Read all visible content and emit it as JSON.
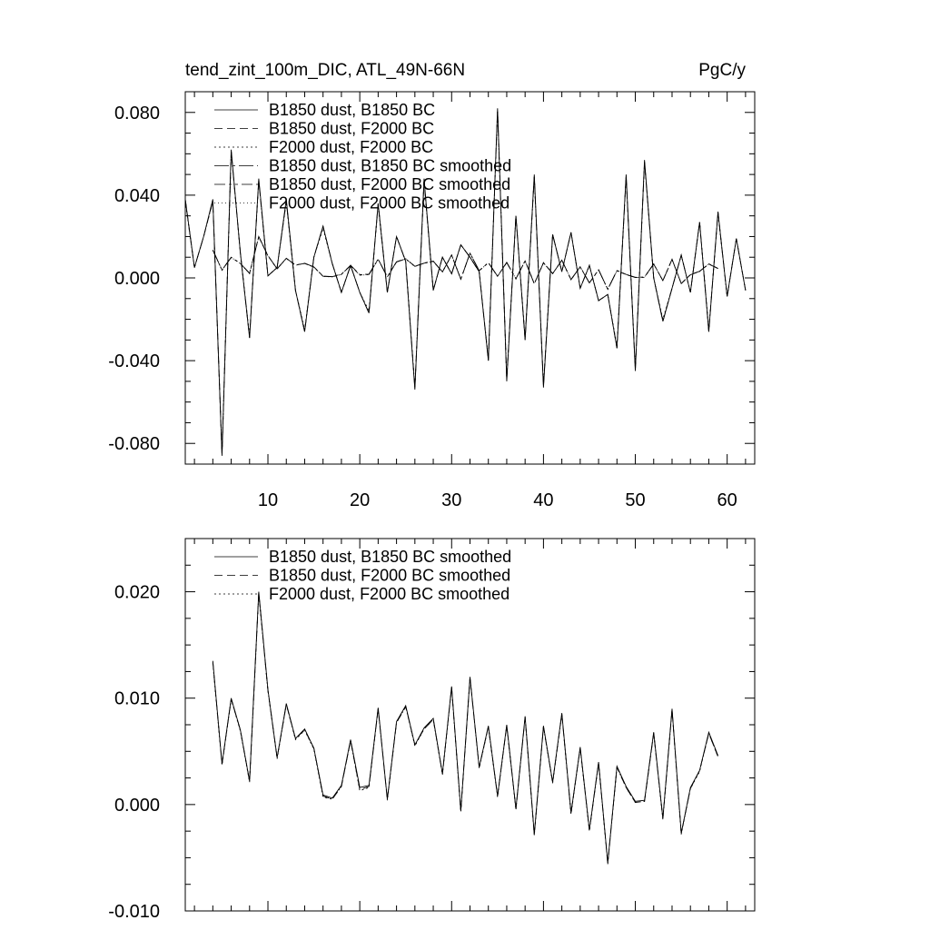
{
  "chart_data": [
    {
      "type": "line",
      "title_left": "tend_zint_100m_DIC, ATL_49N-66N",
      "title_right": "PgC/y",
      "xlabel": "",
      "ylabel": "",
      "xlim": [
        1,
        63
      ],
      "ylim": [
        -0.09,
        0.09
      ],
      "x_ticks": [
        10,
        20,
        30,
        40,
        50,
        60
      ],
      "x_tick_labels": [
        "10",
        "20",
        "30",
        "40",
        "50",
        "60"
      ],
      "y_ticks": [
        -0.08,
        -0.04,
        0.0,
        0.04,
        0.08
      ],
      "y_tick_labels": [
        "-0.080",
        "-0.040",
        "0.000",
        "0.040",
        "0.080"
      ],
      "grid": false,
      "legend_position": "top-left",
      "legend": [
        "B1850 dust, B1850 BC",
        "B1850 dust, F2000 BC",
        "F2000 dust, F2000 BC",
        "B1850 dust, B1850 BC smoothed",
        "B1850 dust, F2000 BC smoothed",
        "F2000 dust, F2000 BC smoothed"
      ],
      "series": [
        {
          "name": "B1850 dust, B1850 BC",
          "dash": "",
          "x_start": 1,
          "values": [
            0.038,
            0.005,
            0.02,
            0.038,
            -0.086,
            0.062,
            0.012,
            -0.029,
            0.048,
            0.001,
            0.005,
            0.038,
            -0.006,
            -0.026,
            0.01,
            0.025,
            0.007,
            -0.007,
            0.006,
            -0.007,
            -0.017,
            0.036,
            -0.007,
            0.02,
            0.008,
            -0.054,
            0.048,
            -0.006,
            0.01,
            0.002,
            0.016,
            0.01,
            0.003,
            -0.04,
            0.082,
            -0.05,
            0.03,
            -0.03,
            0.05,
            -0.053,
            0.021,
            0.003,
            0.022,
            -0.005,
            0.006,
            -0.011,
            -0.008,
            -0.034,
            0.05,
            -0.045,
            0.057,
            0.0,
            -0.021,
            -0.005,
            0.011,
            -0.007,
            0.027,
            -0.026,
            0.032,
            -0.009,
            0.019,
            -0.006
          ]
        },
        {
          "name": "B1850 dust, F2000 BC",
          "dash": "9,5",
          "x_start": 1,
          "values": [
            0.038,
            0.005,
            0.02,
            0.037,
            -0.085,
            0.061,
            0.012,
            -0.029,
            0.047,
            0.001,
            0.005,
            0.037,
            -0.006,
            -0.026,
            0.01,
            0.025,
            0.007,
            -0.007,
            0.006,
            -0.007,
            -0.017,
            0.036,
            -0.007,
            0.02,
            0.008,
            -0.053,
            0.047,
            -0.006,
            0.01,
            0.002,
            0.016,
            0.01,
            0.003,
            -0.04,
            0.081,
            -0.049,
            0.03,
            -0.03,
            0.049,
            -0.052,
            0.021,
            0.003,
            0.022,
            -0.005,
            0.006,
            -0.011,
            -0.008,
            -0.034,
            0.049,
            -0.044,
            0.056,
            0.0,
            -0.021,
            -0.005,
            0.011,
            -0.007,
            0.027,
            -0.026,
            0.032,
            -0.009,
            0.019,
            -0.006
          ]
        },
        {
          "name": "F2000 dust, F2000 BC",
          "dash": "2,3",
          "x_start": 1,
          "values": [
            0.037,
            0.005,
            0.02,
            0.037,
            -0.085,
            0.061,
            0.012,
            -0.028,
            0.047,
            0.001,
            0.005,
            0.037,
            -0.006,
            -0.025,
            0.01,
            0.024,
            0.007,
            -0.007,
            0.006,
            -0.007,
            -0.016,
            0.035,
            -0.007,
            0.02,
            0.008,
            -0.053,
            0.047,
            -0.006,
            0.01,
            0.002,
            0.016,
            0.01,
            0.003,
            -0.039,
            0.081,
            -0.049,
            0.03,
            -0.029,
            0.049,
            -0.052,
            0.021,
            0.003,
            0.022,
            -0.005,
            0.006,
            -0.011,
            -0.008,
            -0.033,
            0.049,
            -0.044,
            0.056,
            0.0,
            -0.02,
            -0.005,
            0.011,
            -0.007,
            0.027,
            -0.025,
            0.031,
            -0.009,
            0.019,
            -0.006
          ]
        },
        {
          "name": "B1850 dust, B1850 BC smoothed",
          "dash": "16,4,3,4",
          "x_start": 4,
          "values": [
            0.0135,
            0.0038,
            0.01,
            0.007,
            0.0022,
            0.02,
            0.0108,
            0.0044,
            0.0095,
            0.0062,
            0.0071,
            0.0053,
            0.0009,
            0.0006,
            0.0018,
            0.0061,
            0.0016,
            0.0018,
            0.0091,
            0.0005,
            0.0078,
            0.0093,
            0.0056,
            0.0072,
            0.0081,
            0.0029,
            0.0111,
            -0.0006,
            0.012,
            0.0035,
            0.0074,
            0.0008,
            0.0075,
            -0.0004,
            0.0083,
            -0.0028,
            0.0074,
            0.0021,
            0.0086,
            -0.0008,
            0.0054,
            -0.0024,
            0.004,
            -0.0055,
            0.0036,
            0.0017,
            0.0003,
            0.0004,
            0.0068,
            -0.0013,
            0.009,
            -0.0027,
            0.0016,
            0.0032,
            0.0068,
            0.0046
          ]
        },
        {
          "name": "B1850 dust, F2000 BC smoothed",
          "dash": "12,4,3,4,3,4",
          "x_start": 4,
          "values": [
            0.0134,
            0.0038,
            0.0099,
            0.007,
            0.0022,
            0.0199,
            0.0107,
            0.0044,
            0.0094,
            0.0062,
            0.007,
            0.0053,
            0.0008,
            0.0005,
            0.0017,
            0.006,
            0.0014,
            0.0017,
            0.009,
            0.0005,
            0.0077,
            0.0092,
            0.0056,
            0.0071,
            0.008,
            0.0029,
            0.011,
            -0.0006,
            0.0119,
            0.0035,
            0.0073,
            0.0008,
            0.0074,
            -0.0004,
            0.0082,
            -0.0028,
            0.0073,
            0.0021,
            0.0085,
            -0.0008,
            0.0053,
            -0.0024,
            0.0039,
            -0.0055,
            0.0035,
            0.0016,
            0.0002,
            0.0003,
            0.0067,
            -0.0013,
            0.0089,
            -0.0027,
            0.0015,
            0.0032,
            0.0067,
            0.0045
          ]
        },
        {
          "name": "F2000 dust, F2000 BC smoothed",
          "dash": "1,3",
          "x_start": 4,
          "values": [
            0.0133,
            0.0037,
            0.0099,
            0.0069,
            0.0021,
            0.0198,
            0.0107,
            0.0043,
            0.0094,
            0.0061,
            0.007,
            0.0052,
            0.0007,
            0.0005,
            0.0017,
            0.006,
            0.0013,
            0.0016,
            0.009,
            0.0004,
            0.0077,
            0.0092,
            0.0055,
            0.0071,
            0.008,
            0.0028,
            0.011,
            -0.0007,
            0.0119,
            0.0034,
            0.0073,
            0.0007,
            0.0074,
            -0.0005,
            0.0082,
            -0.0029,
            0.0073,
            0.002,
            0.0085,
            -0.0009,
            0.0053,
            -0.0025,
            0.0039,
            -0.0056,
            0.0035,
            0.0016,
            0.0002,
            0.0003,
            0.0067,
            -0.0014,
            0.0089,
            -0.0028,
            0.0015,
            0.0031,
            0.0067,
            0.0045
          ]
        }
      ]
    },
    {
      "type": "line",
      "xlabel": "",
      "ylabel": "",
      "xlim": [
        1,
        63
      ],
      "ylim": [
        -0.01,
        0.025
      ],
      "x_ticks": [
        10,
        20,
        30,
        40,
        50,
        60
      ],
      "x_tick_labels": [],
      "y_ticks": [
        -0.01,
        0.0,
        0.01,
        0.02
      ],
      "y_tick_labels": [
        "-0.010",
        "0.000",
        "0.010",
        "0.020"
      ],
      "grid": false,
      "legend_position": "top-left",
      "legend": [
        "B1850 dust, B1850 BC smoothed",
        "B1850 dust, F2000 BC smoothed",
        "F2000 dust, F2000 BC smoothed"
      ],
      "series": [
        {
          "name": "B1850 dust, B1850 BC smoothed",
          "dash": "",
          "x_start": 4,
          "values": [
            0.0135,
            0.0038,
            0.01,
            0.007,
            0.0022,
            0.02,
            0.0108,
            0.0044,
            0.0095,
            0.0062,
            0.0071,
            0.0053,
            0.0009,
            0.0006,
            0.0018,
            0.0061,
            0.0016,
            0.0018,
            0.0091,
            0.0005,
            0.0078,
            0.0093,
            0.0056,
            0.0072,
            0.0081,
            0.0029,
            0.0111,
            -0.0006,
            0.012,
            0.0035,
            0.0074,
            0.0008,
            0.0075,
            -0.0004,
            0.0083,
            -0.0028,
            0.0074,
            0.0021,
            0.0086,
            -0.0008,
            0.0054,
            -0.0024,
            0.004,
            -0.0055,
            0.0036,
            0.0017,
            0.0003,
            0.0004,
            0.0068,
            -0.0013,
            0.009,
            -0.0027,
            0.0016,
            0.0032,
            0.0068,
            0.0046
          ]
        },
        {
          "name": "B1850 dust, F2000 BC smoothed",
          "dash": "9,5",
          "x_start": 4,
          "values": [
            0.0134,
            0.0038,
            0.0099,
            0.007,
            0.0022,
            0.0199,
            0.0107,
            0.0044,
            0.0094,
            0.0062,
            0.007,
            0.0053,
            0.0008,
            0.0005,
            0.0017,
            0.006,
            0.0014,
            0.0017,
            0.009,
            0.0005,
            0.0077,
            0.0092,
            0.0056,
            0.0071,
            0.008,
            0.0029,
            0.011,
            -0.0006,
            0.0119,
            0.0035,
            0.0073,
            0.0008,
            0.0074,
            -0.0004,
            0.0082,
            -0.0028,
            0.0073,
            0.0021,
            0.0085,
            -0.0008,
            0.0053,
            -0.0024,
            0.0039,
            -0.0055,
            0.0035,
            0.0016,
            0.0002,
            0.0003,
            0.0067,
            -0.0013,
            0.0089,
            -0.0027,
            0.0015,
            0.0032,
            0.0067,
            0.0045
          ]
        },
        {
          "name": "F2000 dust, F2000 BC smoothed",
          "dash": "2,3",
          "x_start": 4,
          "values": [
            0.0133,
            0.0037,
            0.0099,
            0.0069,
            0.0021,
            0.0198,
            0.0107,
            0.0043,
            0.0094,
            0.0061,
            0.007,
            0.0052,
            0.0007,
            0.0005,
            0.0017,
            0.006,
            0.0013,
            0.0016,
            0.009,
            0.0004,
            0.0077,
            0.0092,
            0.0055,
            0.0071,
            0.008,
            0.0028,
            0.011,
            -0.0007,
            0.0119,
            0.0034,
            0.0073,
            0.0007,
            0.0074,
            -0.0005,
            0.0082,
            -0.0029,
            0.0073,
            0.002,
            0.0085,
            -0.0009,
            0.0053,
            -0.0025,
            0.0039,
            -0.0056,
            0.0035,
            0.0016,
            0.0002,
            0.0003,
            0.0067,
            -0.0014,
            0.0089,
            -0.0028,
            0.0015,
            0.0031,
            0.0067,
            0.0045
          ]
        }
      ]
    }
  ]
}
